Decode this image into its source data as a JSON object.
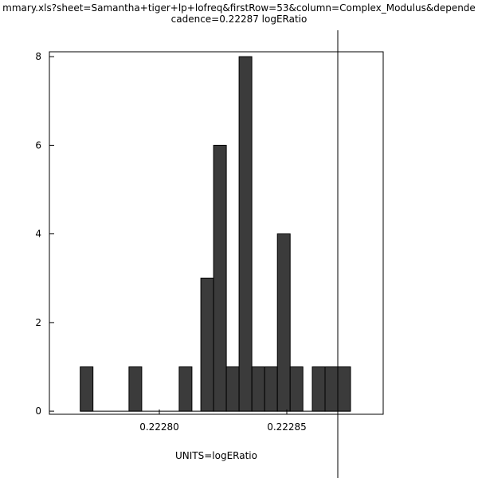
{
  "title": {
    "line1": "mmary.xls?sheet=Samantha+tiger+lp+lofreq&firstRow=53&column=Complex_Modulus&depende",
    "line2": "cadence=0.22287 logERatio"
  },
  "colors": {
    "bar": "#3b3b3b",
    "axis": "#000000",
    "marker_line": "#000000",
    "background": "#ffffff"
  },
  "chart_data": {
    "type": "bar",
    "subtype": "histogram",
    "title": "cadence=0.22287 logERatio",
    "xlabel": "UNITS=logERatio",
    "ylabel": "",
    "grid": false,
    "legend": "none",
    "bin_width": 5e-06,
    "bins": [
      {
        "x0": 0.222769,
        "count": 1
      },
      {
        "x0": 0.2227881,
        "count": 1
      },
      {
        "x0": 0.2228078,
        "count": 1
      },
      {
        "x0": 0.2228163,
        "count": 3
      },
      {
        "x0": 0.2228213,
        "count": 6
      },
      {
        "x0": 0.2228263,
        "count": 1
      },
      {
        "x0": 0.2228313,
        "count": 8
      },
      {
        "x0": 0.2228363,
        "count": 1
      },
      {
        "x0": 0.2228413,
        "count": 1
      },
      {
        "x0": 0.2228463,
        "count": 4
      },
      {
        "x0": 0.2228513,
        "count": 1
      },
      {
        "x0": 0.22286,
        "count": 1
      },
      {
        "x0": 0.222865,
        "count": 1
      },
      {
        "x0": 0.22287,
        "count": 1
      }
    ],
    "x_ticks": [
      {
        "value": 0.2228,
        "label": "0.22280"
      },
      {
        "value": 0.22285,
        "label": "0.22285"
      }
    ],
    "y_ticks": [
      {
        "value": 0,
        "label": "0"
      },
      {
        "value": 2,
        "label": "2"
      },
      {
        "value": 4,
        "label": "4"
      },
      {
        "value": 6,
        "label": "6"
      },
      {
        "value": 8,
        "label": "8"
      }
    ],
    "xlim": [
      0.2227569,
      0.2228878
    ],
    "ylim": [
      -0.07,
      8.11
    ],
    "marker_x": 0.22287
  }
}
